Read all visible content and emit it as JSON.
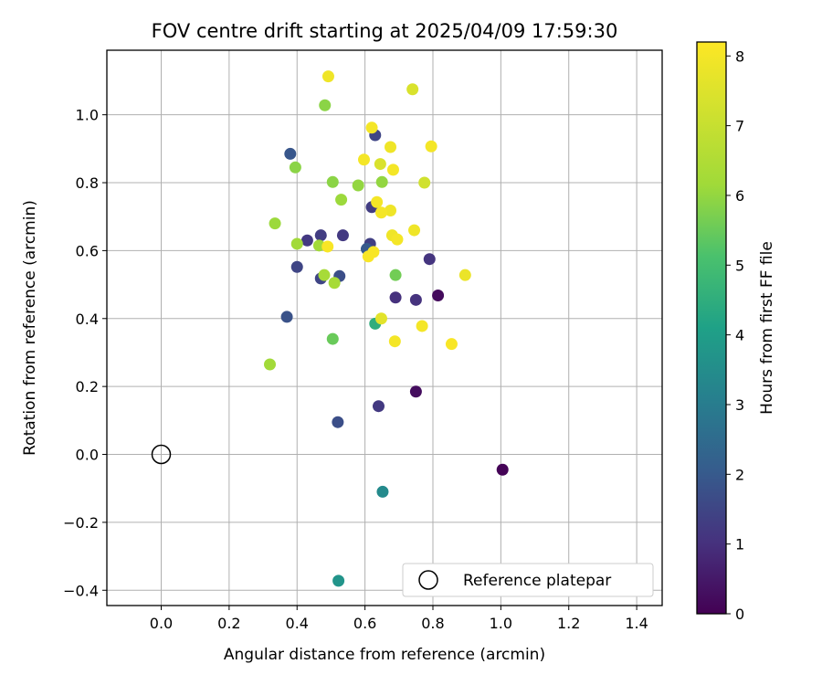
{
  "chart_data": {
    "type": "scatter",
    "title": "FOV centre drift starting at 2025/04/09 17:59:30",
    "xlabel": "Angular distance from reference (arcmin)",
    "ylabel": "Rotation from reference (arcmin)",
    "xlim": [
      -0.16,
      1.475
    ],
    "ylim": [
      -0.445,
      1.19
    ],
    "xticks": [
      0.0,
      0.2,
      0.4,
      0.6,
      0.8,
      1.0,
      1.2,
      1.4
    ],
    "xtick_labels": [
      "0.0",
      "0.2",
      "0.4",
      "0.6",
      "0.8",
      "1.0",
      "1.2",
      "1.4"
    ],
    "yticks": [
      -0.4,
      -0.2,
      0.0,
      0.2,
      0.4,
      0.6,
      0.8,
      1.0
    ],
    "ytick_labels": [
      "−0.4",
      "−0.2",
      "0.0",
      "0.2",
      "0.4",
      "0.6",
      "0.8",
      "1.0"
    ],
    "grid": true,
    "colormap": "viridis",
    "colorbar": {
      "label": "Hours from first FF file",
      "range": [
        0,
        8.2
      ],
      "ticks": [
        0,
        1,
        2,
        3,
        4,
        5,
        6,
        7,
        8
      ],
      "tick_labels": [
        "0",
        "1",
        "2",
        "3",
        "4",
        "5",
        "6",
        "7",
        "8"
      ]
    },
    "reference_point": {
      "x": 0.0,
      "y": 0.0,
      "label": "Reference platepar"
    },
    "legend": {
      "placement": "lower-right",
      "entries": [
        "Reference platepar"
      ]
    },
    "points": [
      {
        "x": 1.005,
        "y": -0.045,
        "hours": 0.05
      },
      {
        "x": 0.815,
        "y": 0.468,
        "hours": 0.2
      },
      {
        "x": 0.75,
        "y": 0.185,
        "hours": 0.25
      },
      {
        "x": 0.69,
        "y": 0.462,
        "hours": 1.0
      },
      {
        "x": 0.75,
        "y": 0.455,
        "hours": 1.05
      },
      {
        "x": 0.79,
        "y": 0.575,
        "hours": 1.1
      },
      {
        "x": 0.64,
        "y": 0.142,
        "hours": 1.2
      },
      {
        "x": 0.535,
        "y": 0.645,
        "hours": 1.2
      },
      {
        "x": 0.43,
        "y": 0.63,
        "hours": 1.2
      },
      {
        "x": 0.47,
        "y": 0.645,
        "hours": 1.3
      },
      {
        "x": 0.62,
        "y": 0.728,
        "hours": 1.3
      },
      {
        "x": 0.615,
        "y": 0.62,
        "hours": 1.35
      },
      {
        "x": 0.47,
        "y": 0.518,
        "hours": 1.5
      },
      {
        "x": 0.63,
        "y": 0.94,
        "hours": 1.5
      },
      {
        "x": 0.4,
        "y": 0.552,
        "hours": 1.5
      },
      {
        "x": 0.525,
        "y": 0.525,
        "hours": 1.7
      },
      {
        "x": 0.52,
        "y": 0.095,
        "hours": 1.7
      },
      {
        "x": 0.37,
        "y": 0.405,
        "hours": 1.8
      },
      {
        "x": 0.38,
        "y": 0.885,
        "hours": 1.9
      },
      {
        "x": 0.605,
        "y": 0.605,
        "hours": 2.0
      },
      {
        "x": 0.652,
        "y": -0.11,
        "hours": 3.4
      },
      {
        "x": 0.522,
        "y": -0.372,
        "hours": 3.7
      },
      {
        "x": 0.63,
        "y": 0.385,
        "hours": 4.5
      },
      {
        "x": 0.505,
        "y": 0.34,
        "hours": 5.5
      },
      {
        "x": 0.69,
        "y": 0.528,
        "hours": 5.6
      },
      {
        "x": 0.482,
        "y": 1.028,
        "hours": 5.9
      },
      {
        "x": 0.395,
        "y": 0.845,
        "hours": 5.9
      },
      {
        "x": 0.505,
        "y": 0.802,
        "hours": 5.9
      },
      {
        "x": 0.58,
        "y": 0.792,
        "hours": 6.0
      },
      {
        "x": 0.65,
        "y": 0.802,
        "hours": 6.0
      },
      {
        "x": 0.53,
        "y": 0.75,
        "hours": 6.1
      },
      {
        "x": 0.335,
        "y": 0.68,
        "hours": 6.1
      },
      {
        "x": 0.4,
        "y": 0.62,
        "hours": 6.2
      },
      {
        "x": 0.465,
        "y": 0.615,
        "hours": 6.2
      },
      {
        "x": 0.48,
        "y": 0.528,
        "hours": 6.3
      },
      {
        "x": 0.51,
        "y": 0.505,
        "hours": 6.3
      },
      {
        "x": 0.32,
        "y": 0.265,
        "hours": 6.2
      },
      {
        "x": 0.775,
        "y": 0.8,
        "hours": 7.2
      },
      {
        "x": 0.74,
        "y": 1.075,
        "hours": 7.4
      },
      {
        "x": 0.645,
        "y": 0.855,
        "hours": 7.4
      },
      {
        "x": 0.895,
        "y": 0.528,
        "hours": 7.8
      },
      {
        "x": 0.648,
        "y": 0.4,
        "hours": 7.6
      },
      {
        "x": 0.492,
        "y": 1.113,
        "hours": 7.9
      },
      {
        "x": 0.62,
        "y": 0.962,
        "hours": 8.0
      },
      {
        "x": 0.675,
        "y": 0.905,
        "hours": 7.9
      },
      {
        "x": 0.795,
        "y": 0.907,
        "hours": 8.0
      },
      {
        "x": 0.597,
        "y": 0.868,
        "hours": 8.0
      },
      {
        "x": 0.683,
        "y": 0.838,
        "hours": 8.0
      },
      {
        "x": 0.635,
        "y": 0.743,
        "hours": 8.0
      },
      {
        "x": 0.675,
        "y": 0.718,
        "hours": 7.9
      },
      {
        "x": 0.648,
        "y": 0.712,
        "hours": 8.0
      },
      {
        "x": 0.745,
        "y": 0.66,
        "hours": 7.9
      },
      {
        "x": 0.68,
        "y": 0.645,
        "hours": 7.9
      },
      {
        "x": 0.695,
        "y": 0.633,
        "hours": 8.0
      },
      {
        "x": 0.49,
        "y": 0.612,
        "hours": 8.1
      },
      {
        "x": 0.625,
        "y": 0.596,
        "hours": 8.1
      },
      {
        "x": 0.61,
        "y": 0.583,
        "hours": 8.1
      },
      {
        "x": 0.768,
        "y": 0.378,
        "hours": 8.0
      },
      {
        "x": 0.688,
        "y": 0.333,
        "hours": 8.0
      },
      {
        "x": 0.855,
        "y": 0.325,
        "hours": 8.1
      }
    ]
  }
}
